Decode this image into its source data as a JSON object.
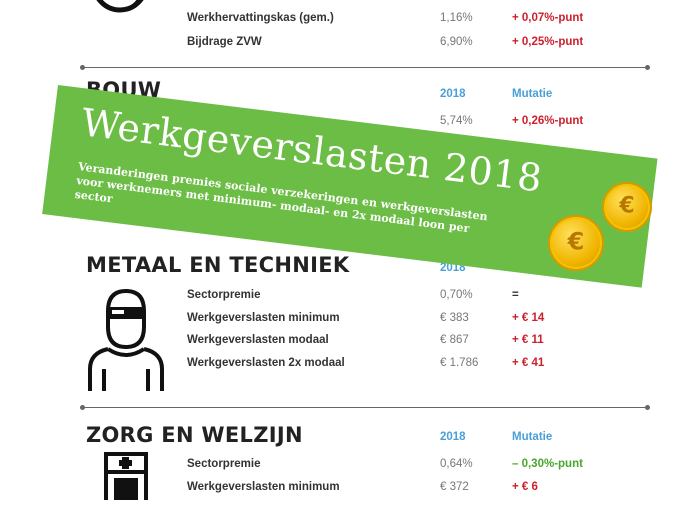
{
  "sections": {
    "top": {
      "rows": [
        {
          "label": "Werkhervattingskas (gem.)",
          "value": "1,16%",
          "mutation": "+ 0,07%-punt"
        },
        {
          "label": "Bijdrage ZVW",
          "value": "6,90%",
          "mutation": "+ 0,25%-punt"
        }
      ]
    },
    "bouw": {
      "title": "BOUW",
      "col_year": "2018",
      "col_mutation": "Mutatie",
      "row_value": "5,74%",
      "row_mutation": "+ 0,26%-punt"
    },
    "metaal": {
      "title": "METAAL EN TECHNIEK",
      "col_year": "2018",
      "rows": [
        {
          "label": "Sectorpremie",
          "value": "0,70%",
          "mutation": "="
        },
        {
          "label": "Werkgeverslasten minimum",
          "value": "€ 383",
          "mutation": "+ € 14"
        },
        {
          "label": "Werkgeverslasten modaal",
          "value": "€ 867",
          "mutation": "+ € 11"
        },
        {
          "label": "Werkgeverslasten 2x modaal",
          "value": "€ 1.786",
          "mutation": "+ € 41"
        }
      ]
    },
    "zorg": {
      "title": "ZORG EN WELZIJN",
      "col_year": "2018",
      "col_mutation": "Mutatie",
      "rows": [
        {
          "label": "Sectorpremie",
          "value": "0,64%",
          "mutation": "– 0,30%-punt"
        },
        {
          "label": "Werkgeverslasten minimum",
          "value": "€ 372",
          "mutation": "+ € 6"
        }
      ]
    }
  },
  "banner": {
    "title": "Werkgeverslasten 2018",
    "subtitle": "Veranderingen premies sociale verzekeringen en werkgeverslasten voor werknemers met minimum- modaal- en 2x modaal loon per sector",
    "coin_symbol": "€"
  },
  "colors": {
    "banner_green": "#6cbd45",
    "increase_red": "#cc1f2b",
    "decrease_green": "#4aa52b",
    "header_blue": "#4a9fd6"
  }
}
